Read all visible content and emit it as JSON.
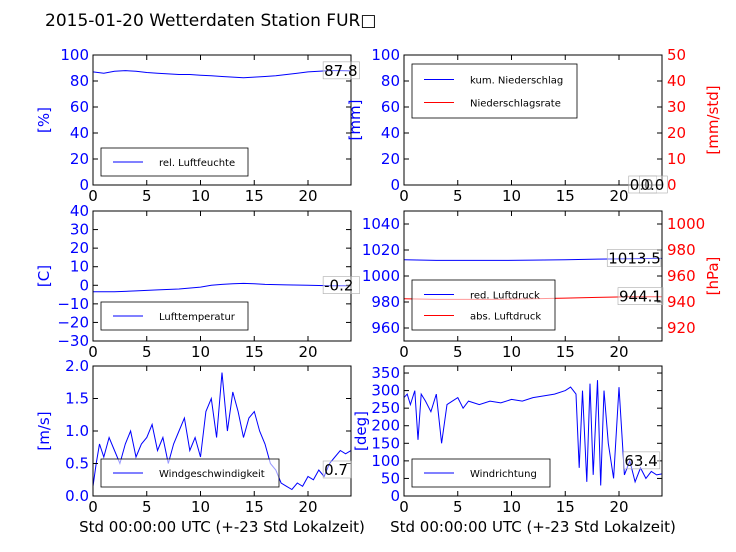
{
  "title": "2015-01-20 Wetterdaten Station FUR□",
  "colors": {
    "blue": "#0000ff",
    "red": "#ff0000",
    "black": "#000000"
  },
  "chart_data": [
    {
      "id": "humidity",
      "type": "line",
      "x_ticks": [
        "0",
        "5",
        "10",
        "15",
        "20"
      ],
      "xlim": [
        0,
        24
      ],
      "ylim": [
        0,
        100
      ],
      "y_ticks": [
        "0",
        "20",
        "40",
        "60",
        "80",
        "100"
      ],
      "ylabel": "[%]",
      "xlabel": "",
      "legend": [
        {
          "label": "rel. Luftfeuchte",
          "color": "#0000ff"
        }
      ],
      "legend_position": "lower-left",
      "annotations": [
        {
          "text": "87.8",
          "x": 21.5,
          "y": 87.8
        }
      ],
      "series": [
        {
          "name": "rel. Luftfeuchte",
          "color": "#0000ff",
          "x": [
            0,
            1,
            2,
            3,
            4,
            5,
            6,
            7,
            8,
            9,
            10,
            11,
            12,
            13,
            14,
            15,
            16,
            17,
            18,
            19,
            20,
            21,
            22,
            23,
            24
          ],
          "values": [
            87,
            86,
            87.5,
            88,
            87.5,
            86.5,
            86,
            85.5,
            85,
            85,
            84.5,
            84,
            83.5,
            83,
            82.5,
            83,
            83.5,
            84,
            85,
            86,
            87,
            87.5,
            88,
            88,
            87.8
          ]
        }
      ]
    },
    {
      "id": "precipitation",
      "type": "line",
      "x_ticks": [
        "0",
        "5",
        "10",
        "15",
        "20"
      ],
      "xlim": [
        0,
        24
      ],
      "ylim": [
        0,
        100
      ],
      "y_ticks": [
        "0",
        "20",
        "40",
        "60",
        "80",
        "100"
      ],
      "ylabel": "[mm]",
      "ylim_right": [
        0,
        50
      ],
      "y_ticks_right": [
        "0",
        "10",
        "20",
        "30",
        "40",
        "50"
      ],
      "ylabel_right": "[mm/std]",
      "xlabel": "",
      "legend": [
        {
          "label": "kum. Niederschlag",
          "color": "#0000ff"
        },
        {
          "label": "Niederschlagsrate",
          "color": "#ff0000"
        }
      ],
      "legend_position": "upper-left",
      "annotations": [
        {
          "text": "0.0",
          "x": 21,
          "y": 0
        },
        {
          "text": "0.0",
          "x": 22,
          "y": 0
        }
      ],
      "series": [
        {
          "name": "kum. Niederschlag",
          "color": "#0000ff",
          "axis": "left",
          "x": [
            0,
            24
          ],
          "values": [
            0,
            0
          ]
        },
        {
          "name": "Niederschlagsrate",
          "color": "#ff0000",
          "axis": "right",
          "x": [
            0,
            24
          ],
          "values": [
            0,
            0
          ]
        }
      ]
    },
    {
      "id": "temperature",
      "type": "line",
      "x_ticks": [
        "0",
        "5",
        "10",
        "15",
        "20"
      ],
      "xlim": [
        0,
        24
      ],
      "ylim": [
        -30,
        40
      ],
      "y_ticks": [
        "−30",
        "−20",
        "−10",
        "0",
        "10",
        "20",
        "30",
        "40"
      ],
      "ylabel": "[C]",
      "xlabel": "",
      "legend": [
        {
          "label": "Lufttemperatur",
          "color": "#0000ff"
        }
      ],
      "legend_position": "lower-left",
      "annotations": [
        {
          "text": "-0.2",
          "x": 21.5,
          "y": -0.2
        }
      ],
      "series": [
        {
          "name": "Lufttemperatur",
          "color": "#0000ff",
          "x": [
            0,
            2,
            4,
            6,
            8,
            10,
            11,
            12,
            13,
            14,
            15,
            16,
            18,
            20,
            22,
            24
          ],
          "values": [
            -3.5,
            -3.5,
            -3,
            -2.5,
            -2,
            -1,
            0,
            0.5,
            0.8,
            1,
            0.8,
            0.5,
            0.2,
            0,
            -0.2,
            -0.2
          ]
        }
      ]
    },
    {
      "id": "pressure",
      "type": "line",
      "x_ticks": [
        "0",
        "5",
        "10",
        "15",
        "20"
      ],
      "xlim": [
        0,
        24
      ],
      "ylim": [
        950,
        1050
      ],
      "y_ticks": [
        "960",
        "980",
        "1000",
        "1020",
        "1040"
      ],
      "ylabel": "",
      "ylim_right": [
        910,
        1010
      ],
      "y_ticks_right": [
        "920",
        "940",
        "960",
        "980",
        "1000"
      ],
      "ylabel_right": "[hPa]",
      "xlabel": "",
      "legend": [
        {
          "label": "red. Luftdruck",
          "color": "#0000ff"
        },
        {
          "label": "abs. Luftdruck",
          "color": "#ff0000"
        }
      ],
      "legend_position": "lower-left",
      "annotations": [
        {
          "text": "1013.5",
          "x": 19,
          "y": 1013.5
        },
        {
          "text": "944.1",
          "x": 20,
          "y": 944.1
        }
      ],
      "series": [
        {
          "name": "red. Luftdruck",
          "color": "#0000ff",
          "axis": "left",
          "x": [
            0,
            3,
            6,
            9,
            12,
            15,
            18,
            21,
            24
          ],
          "values": [
            1012.5,
            1012,
            1012,
            1012,
            1012.2,
            1012.5,
            1013,
            1013.3,
            1013.5
          ]
        },
        {
          "name": "abs. Luftdruck",
          "color": "#ff0000",
          "axis": "right",
          "x": [
            0,
            3,
            6,
            9,
            12,
            15,
            18,
            21,
            24
          ],
          "values": [
            942.5,
            942,
            942,
            942,
            942.5,
            943,
            943.5,
            944,
            944.1
          ]
        }
      ]
    },
    {
      "id": "windspeed",
      "type": "line",
      "x_ticks": [
        "0",
        "5",
        "10",
        "15",
        "20"
      ],
      "xlim": [
        0,
        24
      ],
      "ylim": [
        0,
        2.0
      ],
      "y_ticks": [
        "0.0",
        "0.5",
        "1.0",
        "1.5",
        "2.0"
      ],
      "ylabel": "[m/s]",
      "xlabel": "Std 00:00:00 UTC (+-23 Std Lokalzeit)",
      "legend": [
        {
          "label": "Windgeschwindigkeit",
          "color": "#0000ff"
        }
      ],
      "legend_position": "lower-left",
      "annotations": [
        {
          "text": "0.7",
          "x": 21.5,
          "y": 0.4
        }
      ],
      "series": [
        {
          "name": "Windgeschwindigkeit",
          "color": "#0000ff",
          "x": [
            0,
            0.3,
            0.6,
            1,
            1.5,
            2,
            2.5,
            3,
            3.5,
            4,
            4.5,
            5,
            5.5,
            6,
            6.5,
            7,
            7.5,
            8,
            8.5,
            9,
            9.5,
            10,
            10.5,
            11,
            11.5,
            12,
            12.5,
            13,
            13.5,
            14,
            14.5,
            15,
            15.5,
            16,
            16.5,
            17,
            17.5,
            18,
            18.5,
            19,
            19.5,
            20,
            20.5,
            21,
            21.5,
            22,
            22.5,
            23,
            23.5,
            24
          ],
          "values": [
            0.15,
            0.5,
            0.8,
            0.6,
            0.9,
            0.7,
            0.5,
            0.8,
            1.0,
            0.6,
            0.8,
            0.9,
            1.1,
            0.7,
            0.9,
            0.5,
            0.8,
            1.0,
            1.2,
            0.7,
            0.9,
            0.6,
            1.3,
            1.5,
            0.9,
            1.9,
            1.0,
            1.6,
            1.3,
            0.9,
            1.2,
            1.3,
            1.0,
            0.8,
            0.5,
            0.4,
            0.2,
            0.15,
            0.1,
            0.2,
            0.15,
            0.3,
            0.25,
            0.4,
            0.3,
            0.5,
            0.6,
            0.7,
            0.65,
            0.7
          ]
        }
      ]
    },
    {
      "id": "winddirection",
      "type": "line",
      "x_ticks": [
        "0",
        "5",
        "10",
        "15",
        "20"
      ],
      "xlim": [
        0,
        24
      ],
      "ylim": [
        0,
        370
      ],
      "y_ticks": [
        "0",
        "50",
        "100",
        "150",
        "200",
        "250",
        "300",
        "350"
      ],
      "ylabel": "[deg]",
      "xlabel": "Std 00:00:00 UTC (+-23 Std Lokalzeit)",
      "legend": [
        {
          "label": "Windrichtung",
          "color": "#0000ff"
        }
      ],
      "legend_position": "lower-left",
      "annotations": [
        {
          "text": "63.4",
          "x": 20.5,
          "y": 100
        }
      ],
      "series": [
        {
          "name": "Windrichtung",
          "color": "#0000ff",
          "x": [
            0,
            0.3,
            0.6,
            1,
            1.3,
            1.6,
            2,
            2.5,
            3,
            3.5,
            4,
            4.5,
            5,
            5.5,
            6,
            7,
            8,
            9,
            10,
            11,
            12,
            13,
            14,
            15,
            15.5,
            16,
            16.3,
            16.6,
            17,
            17.3,
            17.6,
            18,
            18.3,
            18.6,
            19,
            19.5,
            20,
            20.5,
            21,
            21.5,
            22,
            22.5,
            23,
            23.5,
            24
          ],
          "values": [
            280,
            290,
            260,
            300,
            160,
            290,
            270,
            240,
            290,
            150,
            260,
            270,
            280,
            250,
            270,
            260,
            270,
            265,
            275,
            270,
            280,
            285,
            290,
            300,
            310,
            290,
            80,
            300,
            40,
            320,
            60,
            330,
            30,
            300,
            150,
            50,
            310,
            60,
            100,
            40,
            80,
            50,
            70,
            60,
            63
          ]
        }
      ]
    }
  ]
}
